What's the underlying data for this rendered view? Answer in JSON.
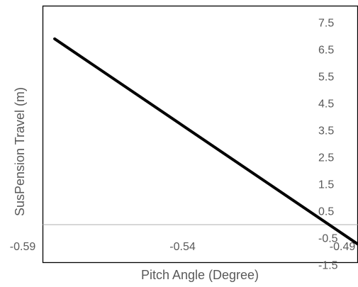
{
  "chart_data": {
    "type": "line",
    "title": "",
    "xlabel": "Pitch Angle (Degree)",
    "ylabel": "SusPension Travel (m)",
    "xlim": [
      -0.59,
      -0.48
    ],
    "ylim": [
      -1.5,
      8.5
    ],
    "x_ticks": [
      "-0.59",
      "-0.54",
      "-0.49"
    ],
    "y_ticks": [
      "7.5",
      "6.5",
      "5.5",
      "4.5",
      "3.5",
      "2.5",
      "1.5",
      "0.5",
      "-0.5",
      "-1.5"
    ],
    "grid": false,
    "legend": "none",
    "series": [
      {
        "color": "#000000",
        "x": [
          -0.58,
          -0.483
        ],
        "y": [
          6.9,
          -0.9
        ]
      }
    ]
  }
}
